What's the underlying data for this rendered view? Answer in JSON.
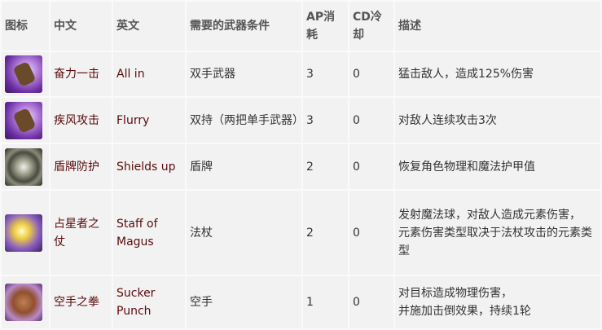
{
  "headers": [
    "图标",
    "中文",
    "英文",
    "需要的武器条件",
    "AP消耗",
    "CD冷却",
    "描述"
  ],
  "rows": [
    {
      "icon": "fist-icon",
      "zh": "奋力一击",
      "en": "All in",
      "weapon": "双手武器",
      "ap": "3",
      "cd": "0",
      "desc": "猛击敌人，造成125%伤害"
    },
    {
      "icon": "fist-icon",
      "zh": "疾风攻击",
      "en": "Flurry",
      "weapon": "双持（两把单手武器）",
      "ap": "3",
      "cd": "0",
      "desc": "对敌人连续攻击3次"
    },
    {
      "icon": "shield-icon",
      "zh": "盾牌防护",
      "en": "Shields up",
      "weapon": "盾牌",
      "ap": "2",
      "cd": "0",
      "desc": "恢复角色物理和魔法护甲值"
    },
    {
      "icon": "staff-icon",
      "zh": "占星者之仗",
      "en": "Staff of Magus",
      "weapon": "法杖",
      "ap": "2",
      "cd": "0",
      "desc": "发射魔法球，对敌人造成元素伤害，\n元素伤害类型取决于法杖攻击的元素类型"
    },
    {
      "icon": "punch-icon",
      "zh": "空手之拳",
      "en": "Sucker Punch",
      "weapon": "空手",
      "ap": "1",
      "cd": "0",
      "desc": "对目标造成物理伤害，\n并施加击倒效果，持续1轮"
    }
  ],
  "colors": {
    "name_text": "#5a0a0a",
    "background": "#f2f2f3"
  }
}
